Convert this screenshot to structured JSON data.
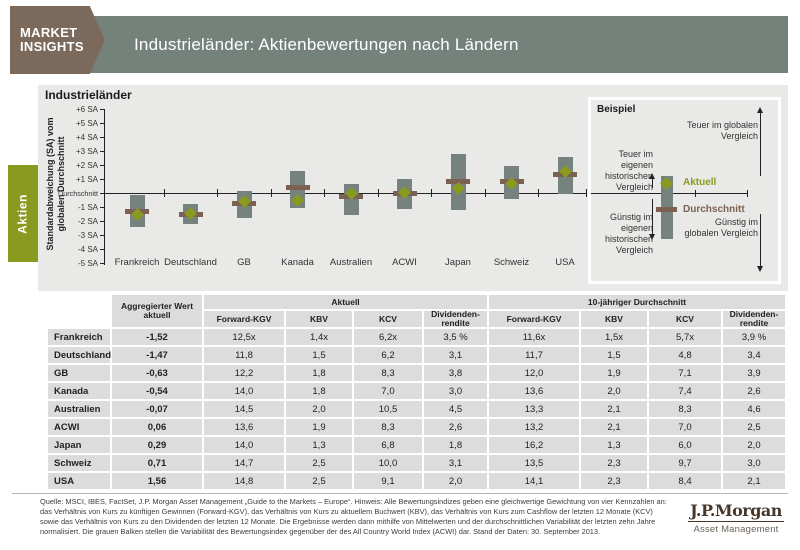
{
  "header": {
    "brand_line1": "MARKET",
    "brand_line2": "INSIGHTS",
    "title": "Industrieländer: Aktienbewertungen nach Ländern"
  },
  "sidebar": {
    "tab_label": "Aktien"
  },
  "chart_data": {
    "type": "bar",
    "title": "Industrieländer",
    "ylabel": "Standardabweichung (SA) vom globalen Durchschnitt",
    "ylim": [
      -5,
      6
    ],
    "yticks": [
      "+6 SA",
      "+5 SA",
      "+4 SA",
      "+3 SA",
      "+2 SA",
      "+1 SA",
      "Durchschnitt",
      "-1 SA",
      "-2 SA",
      "-3 SA",
      "-4 SA",
      "-5 SA"
    ],
    "grid": false,
    "legend_position": "example-box-right",
    "categories": [
      "Frankreich",
      "Deutschland",
      "GB",
      "Kanada",
      "Australien",
      "ACWI",
      "Japan",
      "Schweiz",
      "USA"
    ],
    "series": [
      {
        "name": "Variabilität (grauer Balken)",
        "type": "range",
        "high": [
          -0.15,
          -0.8,
          0.15,
          1.6,
          0.65,
          1.0,
          2.8,
          1.95,
          2.55
        ],
        "low": [
          -2.45,
          -2.2,
          -1.8,
          -1.1,
          -1.55,
          -1.15,
          -1.2,
          -0.4,
          -0.05
        ]
      },
      {
        "name": "Durchschnitt",
        "type": "dash",
        "values": [
          -1.35,
          -1.5,
          -0.75,
          0.4,
          -0.25,
          -0.05,
          0.8,
          0.8,
          1.3
        ]
      },
      {
        "name": "Aktuell",
        "type": "diamond",
        "values": [
          -1.52,
          -1.47,
          -0.63,
          -0.54,
          -0.07,
          0.06,
          0.29,
          0.71,
          1.56
        ]
      }
    ]
  },
  "beispiel": {
    "title": "Beispiel",
    "aktuell_label": "Aktuell",
    "durchschnitt_label": "Durchschnitt",
    "teuer_global": "Teuer im globalen Vergleich",
    "guenstig_global": "Günstig im globalen Vergleich",
    "teuer_eigen": "Teuer im eigenen historischen Vergleich",
    "guenstig_eigen": "Günstig im eigenen historischen Vergleich"
  },
  "table": {
    "agg_header": "Aggregierter Wert aktuell",
    "group_headers": [
      "Aktuell",
      "10-jähriger Durchschnitt"
    ],
    "sub_headers": [
      "Forward-KGV",
      "KBV",
      "KCV",
      "Dividenden-rendite"
    ],
    "rows": [
      {
        "name": "Frankreich",
        "agg": "-1,52",
        "aktuell": [
          "12,5x",
          "1,4x",
          "6,2x",
          "3,5 %"
        ],
        "avg10": [
          "11,6x",
          "1,5x",
          "5,7x",
          "3,9 %"
        ]
      },
      {
        "name": "Deutschland",
        "agg": "-1,47",
        "aktuell": [
          "11,8",
          "1,5",
          "6,2",
          "3,1"
        ],
        "avg10": [
          "11,7",
          "1,5",
          "4,8",
          "3,4"
        ]
      },
      {
        "name": "GB",
        "agg": "-0,63",
        "aktuell": [
          "12,2",
          "1,8",
          "8,3",
          "3,8"
        ],
        "avg10": [
          "12,0",
          "1,9",
          "7,1",
          "3,9"
        ]
      },
      {
        "name": "Kanada",
        "agg": "-0,54",
        "aktuell": [
          "14,0",
          "1,8",
          "7,0",
          "3,0"
        ],
        "avg10": [
          "13,6",
          "2,0",
          "7,4",
          "2,6"
        ]
      },
      {
        "name": "Australien",
        "agg": "-0,07",
        "aktuell": [
          "14,5",
          "2,0",
          "10,5",
          "4,5"
        ],
        "avg10": [
          "13,3",
          "2,1",
          "8,3",
          "4,6"
        ]
      },
      {
        "name": "ACWI",
        "agg": "0,06",
        "aktuell": [
          "13,6",
          "1,9",
          "8,3",
          "2,6"
        ],
        "avg10": [
          "13,2",
          "2,1",
          "7,0",
          "2,5"
        ]
      },
      {
        "name": "Japan",
        "agg": "0,29",
        "aktuell": [
          "14,0",
          "1,3",
          "6,8",
          "1,8"
        ],
        "avg10": [
          "16,2",
          "1,3",
          "6,0",
          "2,0"
        ]
      },
      {
        "name": "Schweiz",
        "agg": "0,71",
        "aktuell": [
          "14,7",
          "2,5",
          "10,0",
          "3,1"
        ],
        "avg10": [
          "13,5",
          "2,3",
          "9,7",
          "3,0"
        ]
      },
      {
        "name": "USA",
        "agg": "1,56",
        "aktuell": [
          "14,8",
          "2,5",
          "9,1",
          "2,0"
        ],
        "avg10": [
          "14,1",
          "2,3",
          "8,4",
          "2,1"
        ]
      }
    ]
  },
  "footer": {
    "source_text": "Quelle: MSCI, IBES, FactSet, J.P. Morgan Asset Management „Guide to the Markets – Europe“. Hinweis: Alle Bewertungsindizes geben eine gleichwertige Gewichtung von vier Kennzahlen an: das Verhältnis von Kurs zu künftigen Gewinnen (Forward-KGV), das Verhältnis von Kurs zu aktuellem Buchwert (KBV), das Verhältnis von Kurs zum Cashflow der letzten 12 Monate (KCV) sowie das Verhältnis von Kurs zu den Dividenden der letzten 12 Monate. Die Ergebnisse werden dann mithilfe von Mittelwerten und der durchschnittlichen Variabilität der letzten zehn Jahre normalisiert. Die grauen Balken stellen die Variabilität des Bewertungsindex gegenüber der des All Country World Index (ACWI) dar. Stand der Daten: 30. September 2013.",
    "logo_line1": "J.P.Morgan",
    "logo_line2": "Asset Management"
  },
  "colors": {
    "header_bar": "#75817B",
    "logo_box": "#7B695C",
    "accent_olive": "#8A9A1F",
    "dash_brown": "#7B6152",
    "bar_gray": "#75827E",
    "panel_bg": "#E9E9E7",
    "cell_bg": "#DCDCDC",
    "jpm_brown": "#47362A"
  }
}
